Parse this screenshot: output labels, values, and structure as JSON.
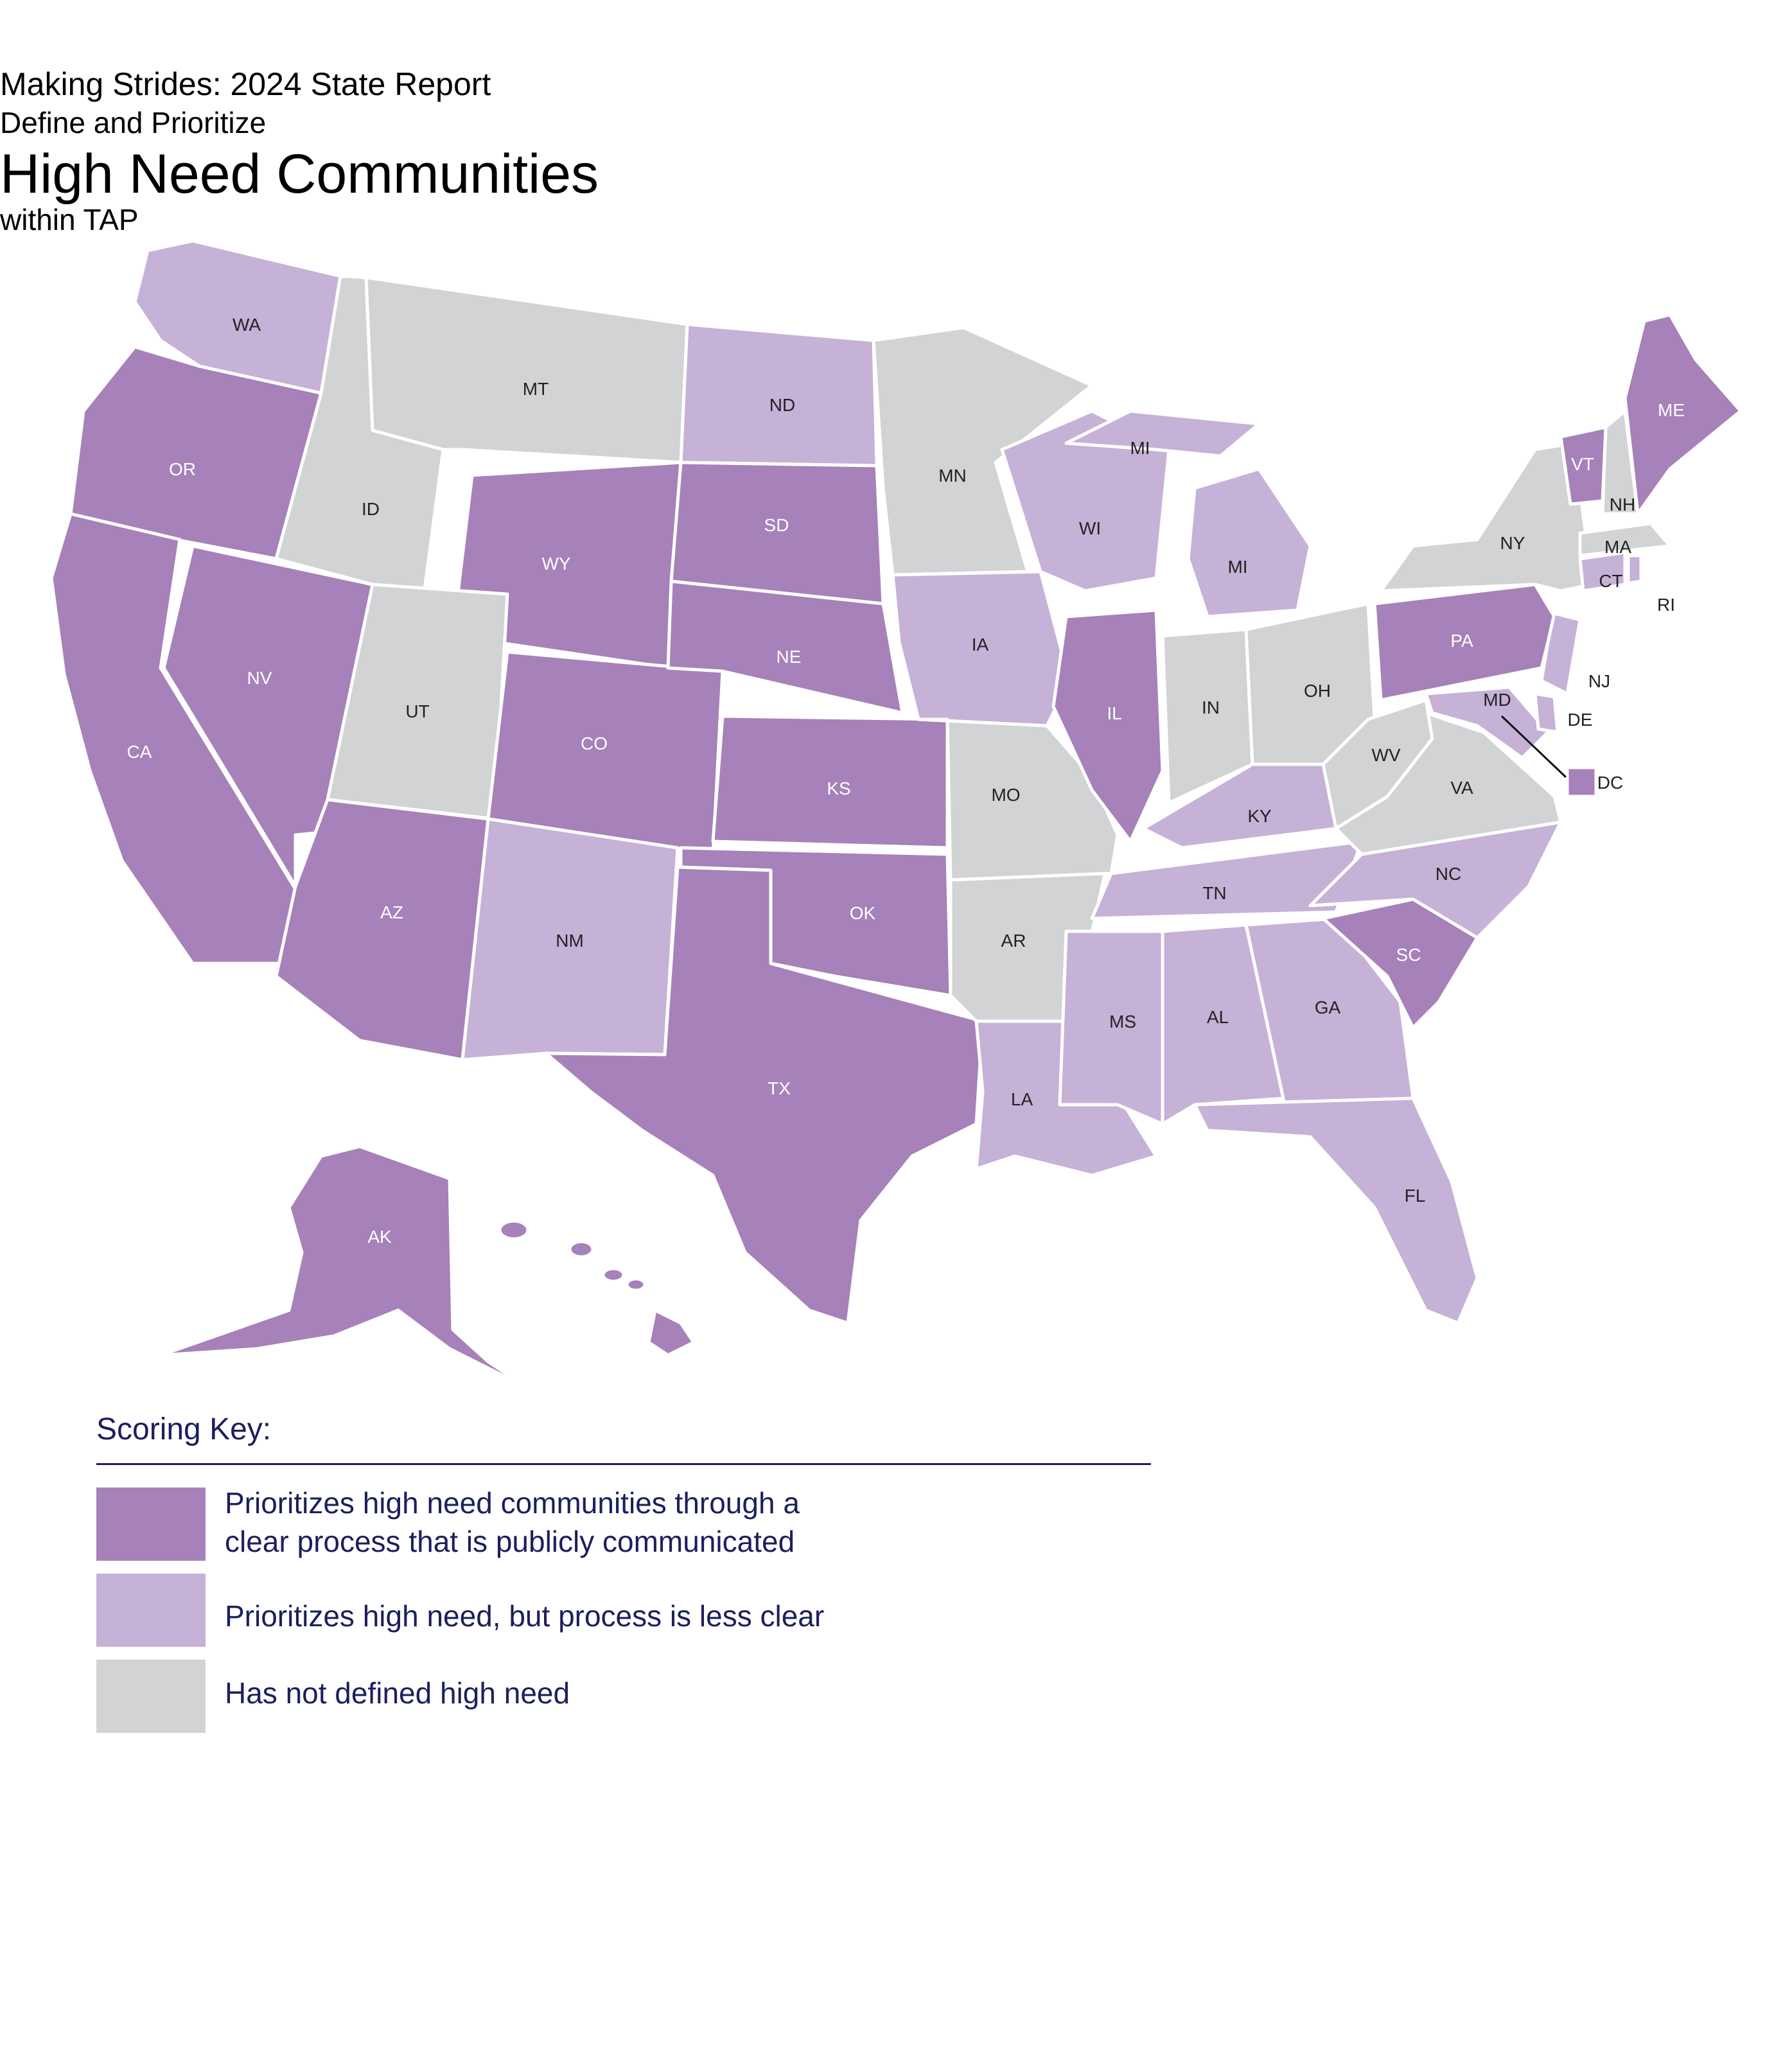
{
  "title": {
    "line1": "Making Strides:  2024 State Report",
    "line2": "Define and Prioritize",
    "line3": "High Need Communities",
    "line4": "within TAP"
  },
  "colors": {
    "clear": "#a681ba",
    "less_clear": "#c6b1d7",
    "not_defined": "#d1d3d4",
    "border": "#ffffff"
  },
  "states": [
    {
      "abbr": "WA",
      "category": "less_clear"
    },
    {
      "abbr": "OR",
      "category": "clear"
    },
    {
      "abbr": "CA",
      "category": "clear"
    },
    {
      "abbr": "NV",
      "category": "clear"
    },
    {
      "abbr": "ID",
      "category": "not_defined"
    },
    {
      "abbr": "MT",
      "category": "not_defined"
    },
    {
      "abbr": "WY",
      "category": "clear"
    },
    {
      "abbr": "UT",
      "category": "not_defined"
    },
    {
      "abbr": "AZ",
      "category": "clear"
    },
    {
      "abbr": "CO",
      "category": "clear"
    },
    {
      "abbr": "NM",
      "category": "less_clear"
    },
    {
      "abbr": "ND",
      "category": "less_clear"
    },
    {
      "abbr": "SD",
      "category": "clear"
    },
    {
      "abbr": "NE",
      "category": "clear"
    },
    {
      "abbr": "KS",
      "category": "clear"
    },
    {
      "abbr": "OK",
      "category": "clear"
    },
    {
      "abbr": "TX",
      "category": "clear"
    },
    {
      "abbr": "MN",
      "category": "not_defined"
    },
    {
      "abbr": "IA",
      "category": "less_clear"
    },
    {
      "abbr": "MO",
      "category": "not_defined"
    },
    {
      "abbr": "AR",
      "category": "not_defined"
    },
    {
      "abbr": "LA",
      "category": "less_clear"
    },
    {
      "abbr": "WI",
      "category": "less_clear"
    },
    {
      "abbr": "IL",
      "category": "clear"
    },
    {
      "abbr": "MI",
      "category": "less_clear"
    },
    {
      "abbr": "IN",
      "category": "not_defined"
    },
    {
      "abbr": "OH",
      "category": "not_defined"
    },
    {
      "abbr": "KY",
      "category": "less_clear"
    },
    {
      "abbr": "TN",
      "category": "less_clear"
    },
    {
      "abbr": "MS",
      "category": "less_clear"
    },
    {
      "abbr": "AL",
      "category": "less_clear"
    },
    {
      "abbr": "GA",
      "category": "less_clear"
    },
    {
      "abbr": "FL",
      "category": "less_clear"
    },
    {
      "abbr": "SC",
      "category": "clear"
    },
    {
      "abbr": "NC",
      "category": "less_clear"
    },
    {
      "abbr": "VA",
      "category": "not_defined"
    },
    {
      "abbr": "WV",
      "category": "not_defined"
    },
    {
      "abbr": "MD",
      "category": "less_clear"
    },
    {
      "abbr": "DE",
      "category": "less_clear"
    },
    {
      "abbr": "DC",
      "category": "clear"
    },
    {
      "abbr": "PA",
      "category": "clear"
    },
    {
      "abbr": "NJ",
      "category": "less_clear"
    },
    {
      "abbr": "NY",
      "category": "not_defined"
    },
    {
      "abbr": "CT",
      "category": "less_clear"
    },
    {
      "abbr": "RI",
      "category": "less_clear"
    },
    {
      "abbr": "MA",
      "category": "not_defined"
    },
    {
      "abbr": "VT",
      "category": "clear"
    },
    {
      "abbr": "NH",
      "category": "not_defined"
    },
    {
      "abbr": "ME",
      "category": "clear"
    },
    {
      "abbr": "AK",
      "category": "clear"
    },
    {
      "abbr": "HI",
      "category": "clear"
    }
  ],
  "legend": {
    "title": "Scoring Key:",
    "items": [
      {
        "category": "clear",
        "line1": "Prioritizes high need communities through a",
        "line2": "clear process that is publicly communicated"
      },
      {
        "category": "less_clear",
        "line1": "Prioritizes high need, but process is less clear",
        "line2": ""
      },
      {
        "category": "not_defined",
        "line1": "Has not defined high need",
        "line2": ""
      }
    ]
  }
}
